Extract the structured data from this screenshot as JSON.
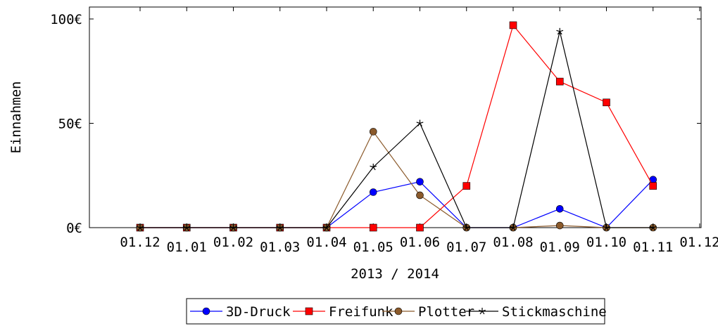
{
  "chart_data": {
    "type": "line",
    "xlabel": "2013 / 2014",
    "ylabel": "Einnahmen",
    "x_tick_labels": [
      "01.12",
      "01.01",
      "01.02",
      "01.03",
      "01.04",
      "01.05",
      "01.06",
      "01.07",
      "01.08",
      "01.09",
      "01.10",
      "01.11",
      "01.12"
    ],
    "y_ticks": [
      0,
      50,
      100
    ],
    "y_tick_labels": [
      "0€",
      "50€",
      "100€"
    ],
    "ylim": [
      0,
      100
    ],
    "grid": false,
    "legend_position": "bottom-center",
    "series": [
      {
        "name": "3D-Druck",
        "color": "#0000ff",
        "marker": "circle",
        "values": [
          0,
          0,
          0,
          0,
          0,
          17,
          22,
          0,
          0,
          9,
          0,
          23
        ]
      },
      {
        "name": "Freifunk",
        "color": "#ff0000",
        "marker": "square",
        "values": [
          0,
          0,
          0,
          0,
          0,
          0,
          0,
          20,
          97,
          70,
          60,
          20
        ]
      },
      {
        "name": "Plotter",
        "color": "#8b5a2b",
        "marker": "circle",
        "values": [
          0,
          0,
          0,
          0,
          0,
          46,
          15.5,
          0,
          0,
          1,
          0,
          0
        ]
      },
      {
        "name": "Stickmaschine",
        "color": "#000000",
        "marker": "star",
        "values": [
          0,
          0,
          0,
          0,
          0,
          29,
          50,
          0,
          0,
          94,
          0,
          0
        ]
      }
    ]
  }
}
